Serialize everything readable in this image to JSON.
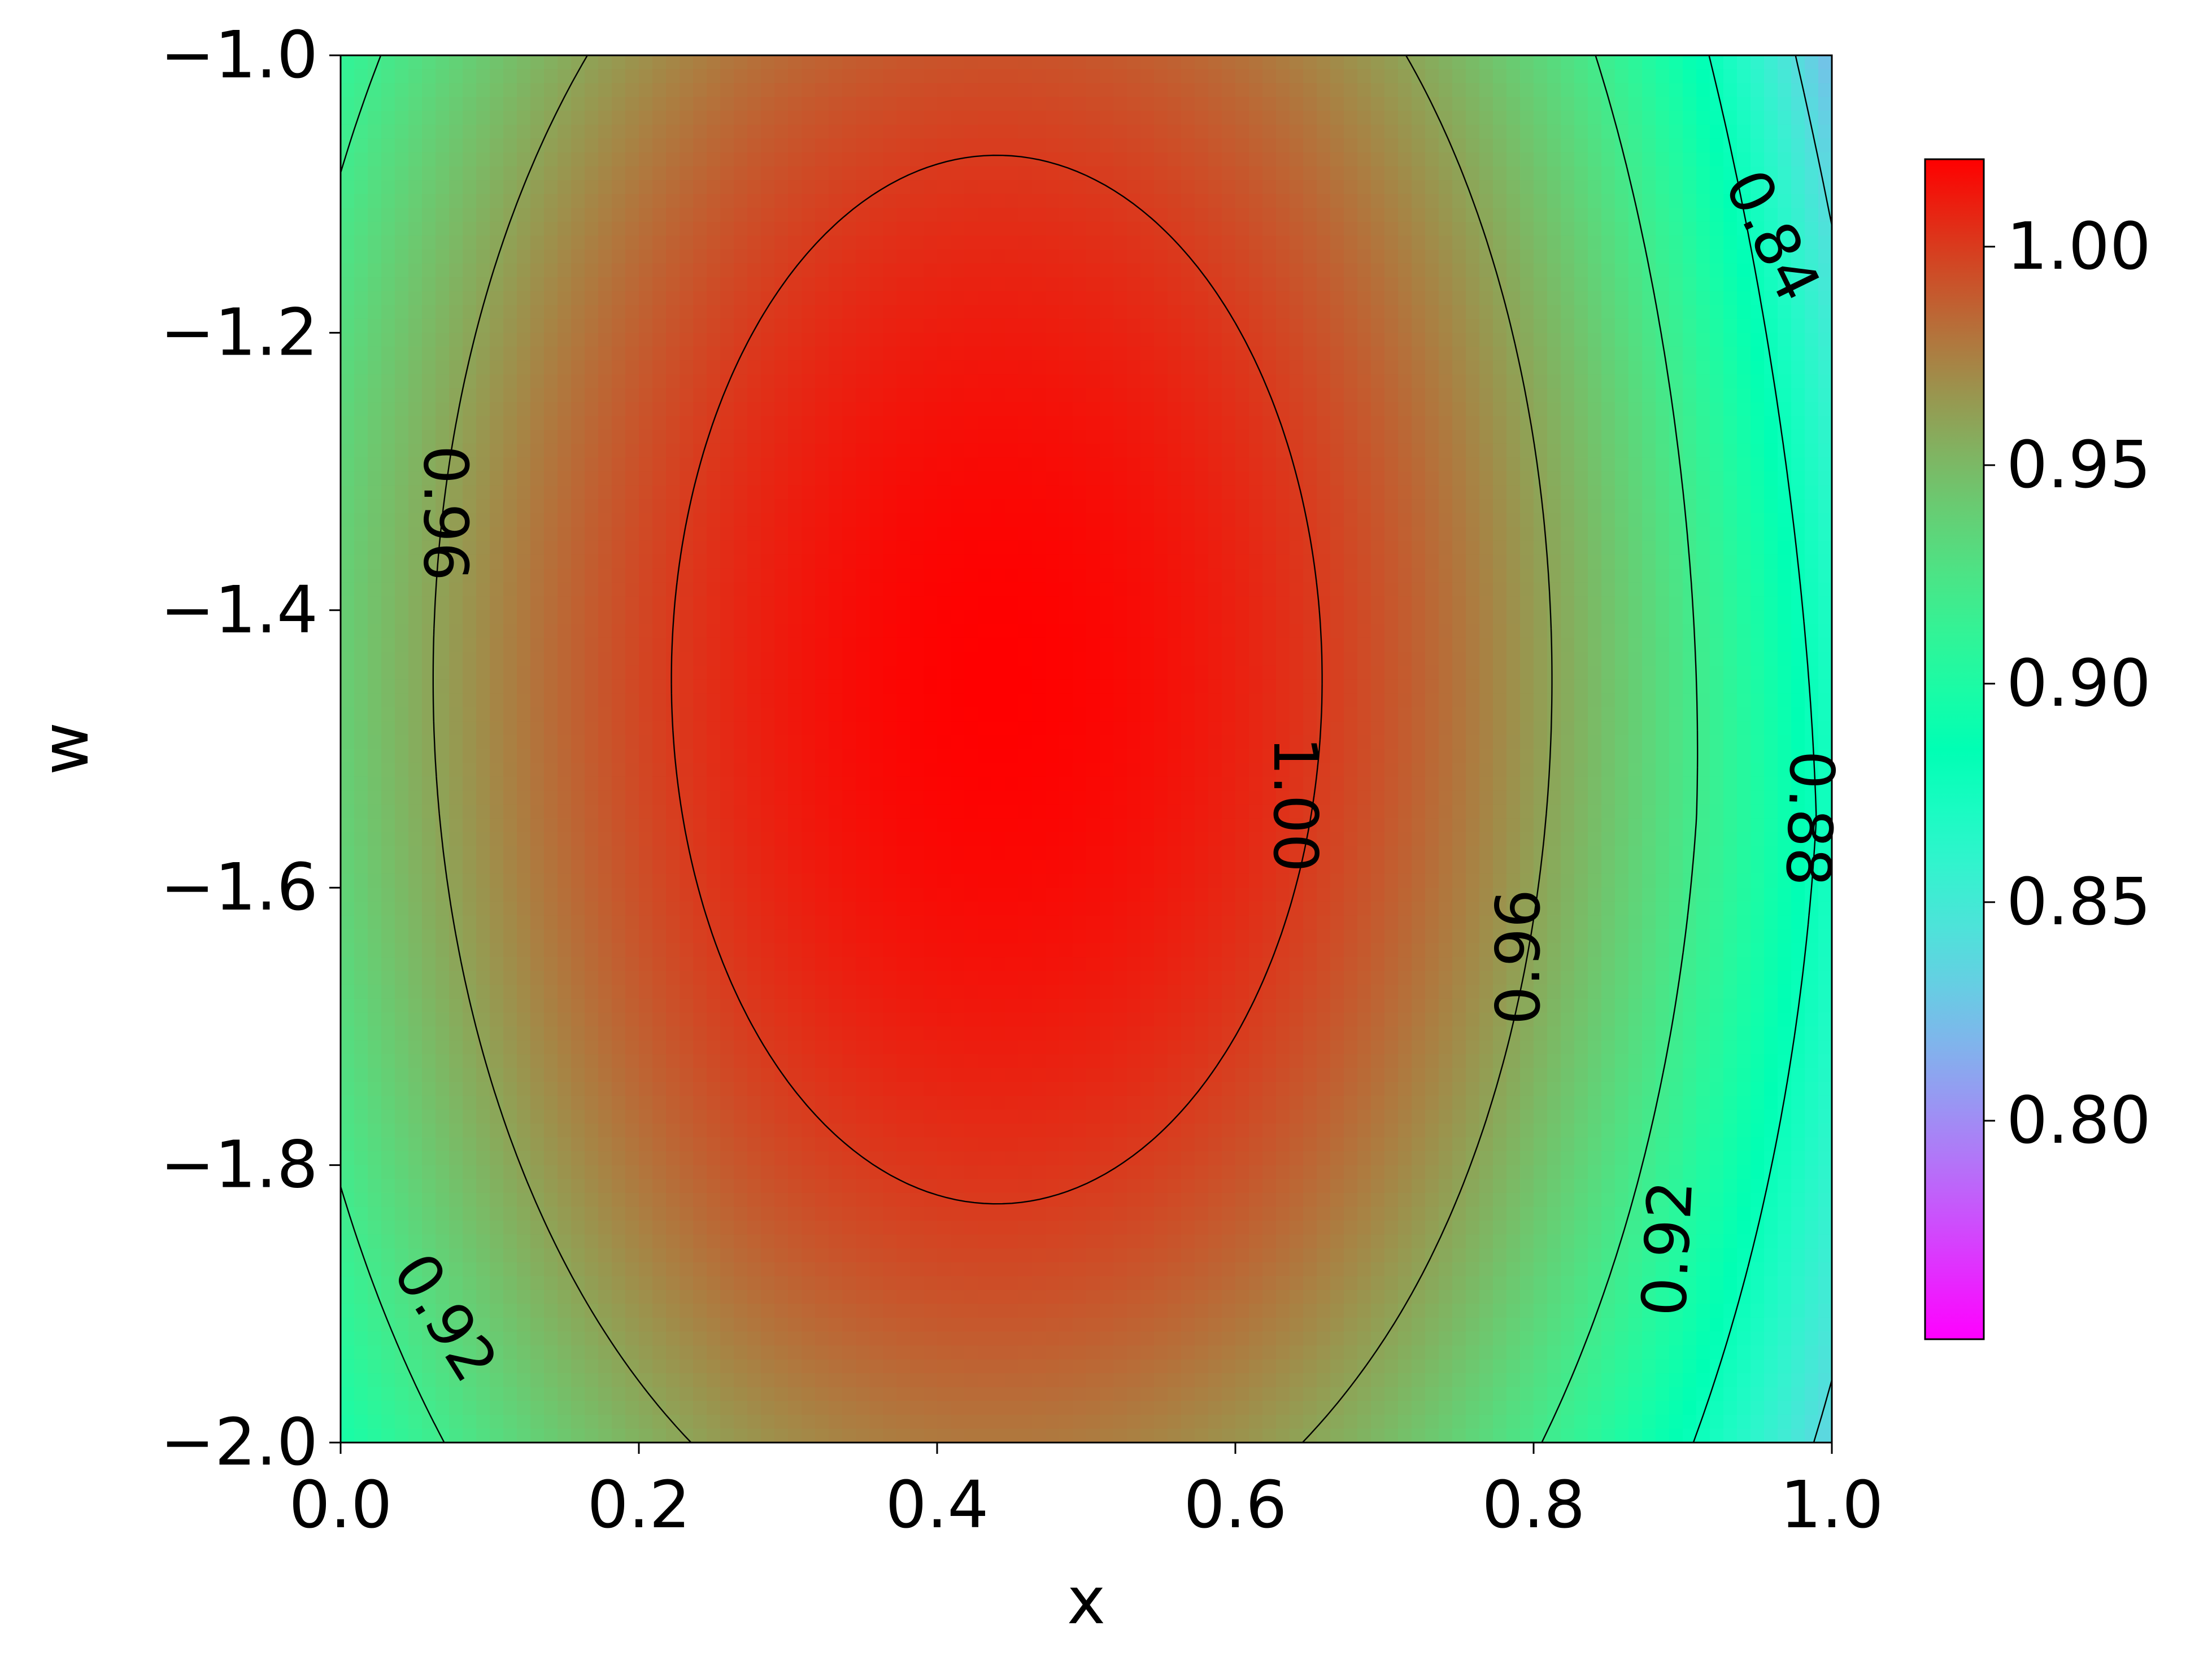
{
  "chart_data": {
    "type": "heatmap",
    "subtype": "filled-contour",
    "title": "",
    "xlabel": "x",
    "ylabel": "w",
    "xlim": [
      0.0,
      1.0
    ],
    "ylim": [
      -2.0,
      -1.0
    ],
    "x_ticks": [
      "0.0",
      "0.2",
      "0.4",
      "0.6",
      "0.8",
      "1.0"
    ],
    "y_ticks": [
      "−2.0",
      "−1.8",
      "−1.6",
      "−1.4",
      "−1.2",
      "−1.0"
    ],
    "colormap": "rainbow",
    "colorbar": {
      "range": [
        0.75,
        1.02
      ],
      "ticks": [
        "0.80",
        "0.85",
        "0.90",
        "0.95",
        "1.00"
      ]
    },
    "field": {
      "peak_value": 1.02,
      "peak_x": 0.44,
      "peak_w": -1.45
    },
    "contour_levels": [
      0.84,
      0.88,
      0.92,
      0.96,
      1.0
    ],
    "contour_labels": [
      {
        "text": "1.00",
        "x": 0.64,
        "w": -1.54,
        "angle": 90
      },
      {
        "text": "0.96",
        "x": 0.07,
        "w": -1.33,
        "angle": 90
      },
      {
        "text": "0.96",
        "x": 0.79,
        "w": -1.65,
        "angle": -90
      },
      {
        "text": "0.92",
        "x": 0.07,
        "w": -1.91,
        "angle": 58
      },
      {
        "text": "0.92",
        "x": 0.89,
        "w": -1.86,
        "angle": -87
      },
      {
        "text": "0.88",
        "x": 0.985,
        "w": -1.55,
        "angle": 92
      },
      {
        "text": "0.84",
        "x": 0.96,
        "w": -1.13,
        "angle": 64
      }
    ]
  }
}
